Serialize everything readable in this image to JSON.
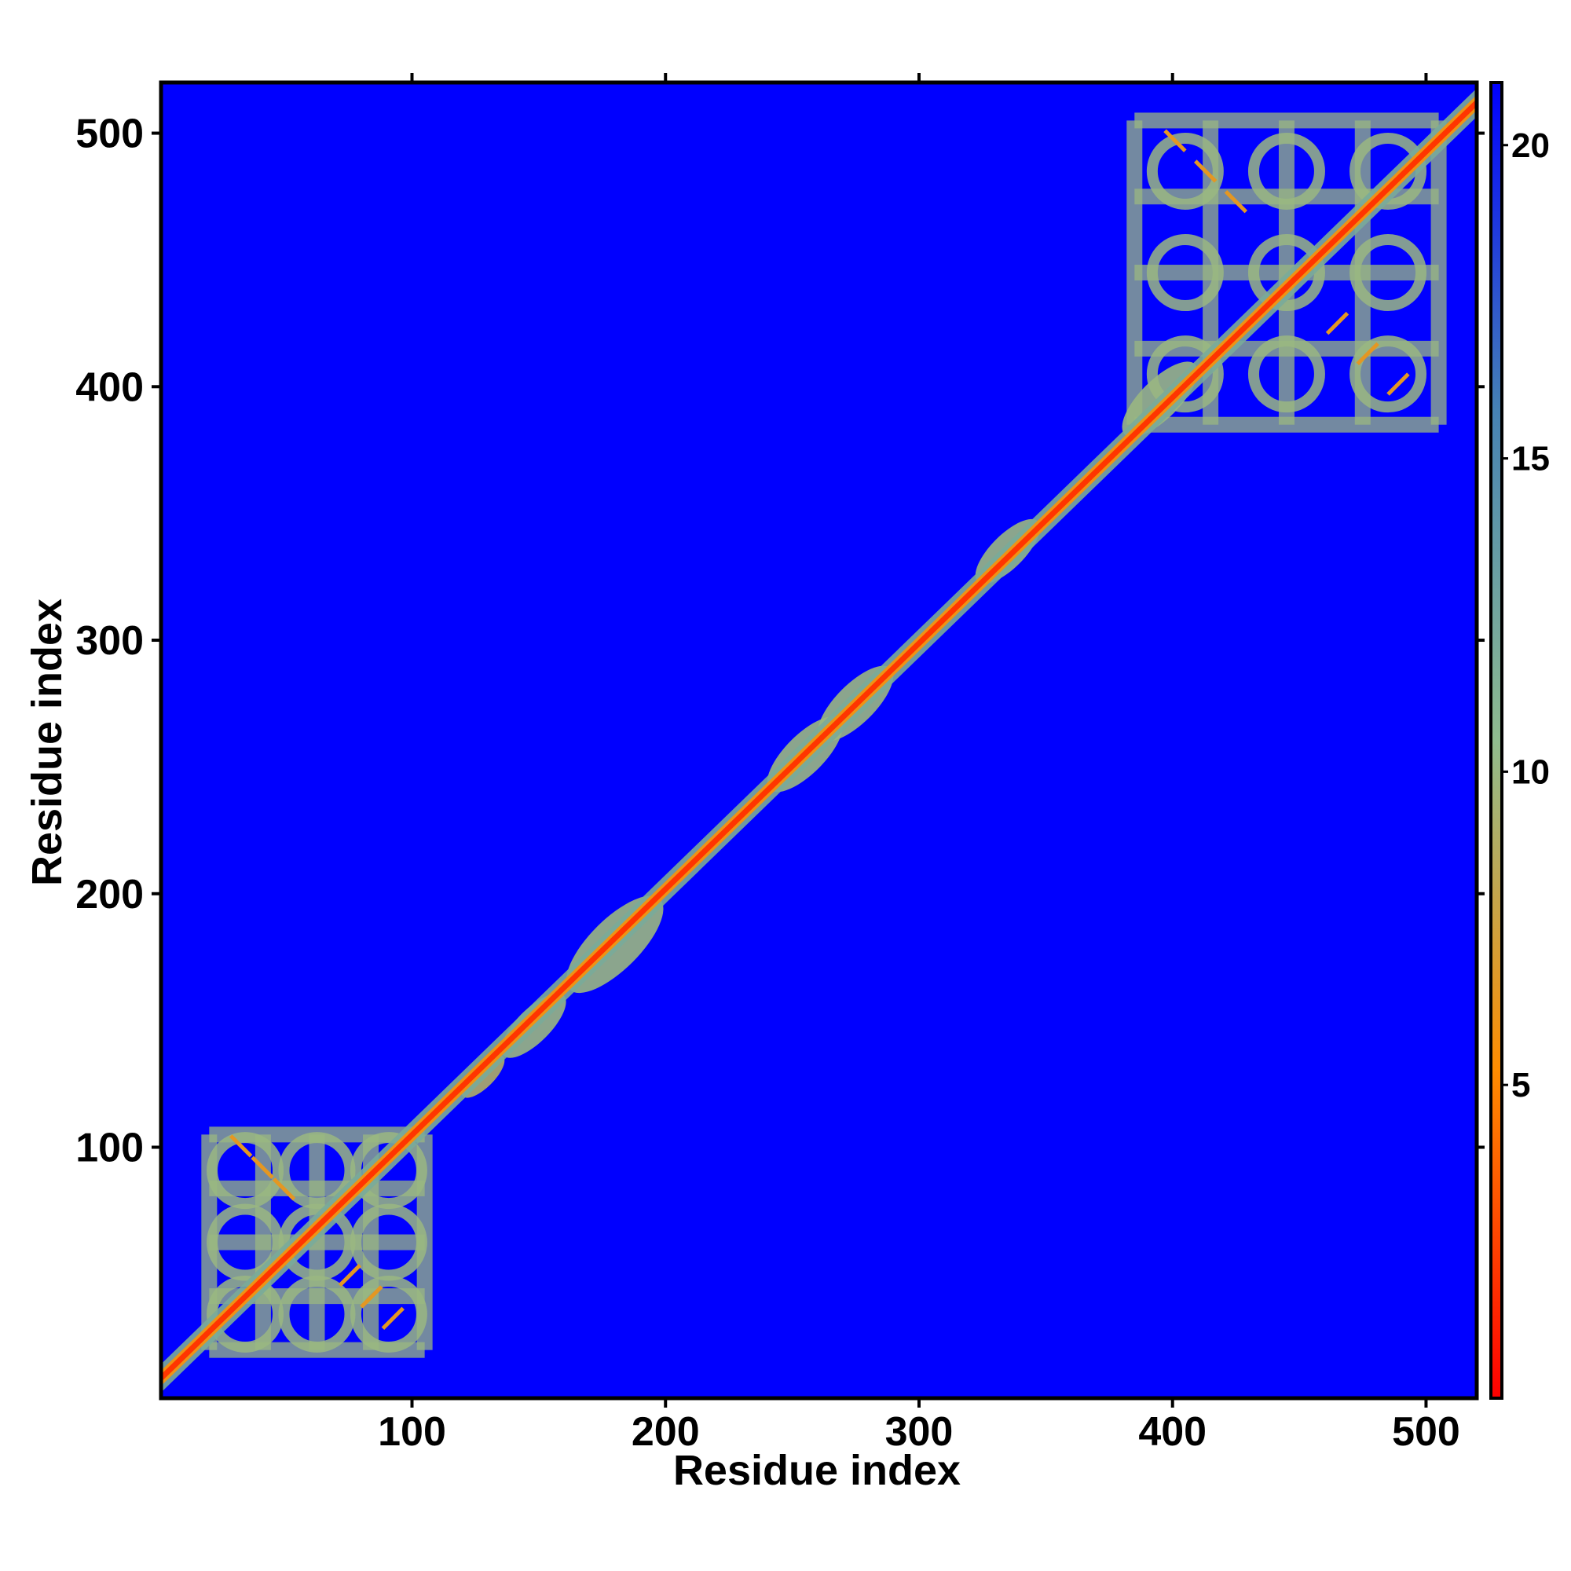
{
  "chart_data": {
    "type": "heatmap",
    "title": "",
    "xlabel": "Residue index",
    "ylabel": "Residue index",
    "xlim": [
      1,
      520
    ],
    "ylim": [
      1,
      520
    ],
    "x_ticks": [
      100,
      200,
      300,
      400,
      500
    ],
    "y_ticks": [
      100,
      200,
      300,
      400,
      500
    ],
    "x_tick_labels": [
      "100",
      "200",
      "300",
      "400",
      "500"
    ],
    "y_tick_labels": [
      "100",
      "200",
      "300",
      "400",
      "500"
    ],
    "colorbar": {
      "range": [
        0,
        21
      ],
      "ticks": [
        5,
        10,
        15,
        20
      ],
      "tick_labels": [
        "5",
        "10",
        "15",
        "20"
      ],
      "colors": [
        "#ff0000",
        "#ff8c00",
        "#8fbc8f",
        "#4682b4",
        "#0000ff"
      ]
    },
    "background_value": 21,
    "diagonal": {
      "from": 1,
      "to": 520,
      "value": 2
    },
    "domains": [
      {
        "start": 20,
        "end": 105,
        "value": 10
      },
      {
        "start": 385,
        "end": 505,
        "value": 10
      }
    ],
    "local_blobs": [
      {
        "center": 128,
        "width": 8,
        "value": 9
      },
      {
        "center": 148,
        "width": 12,
        "value": 10
      },
      {
        "center": 180,
        "width": 18,
        "value": 10
      },
      {
        "center": 255,
        "width": 14,
        "value": 10
      },
      {
        "center": 275,
        "width": 14,
        "value": 10
      },
      {
        "center": 335,
        "width": 12,
        "value": 10
      },
      {
        "center": 395,
        "width": 14,
        "value": 10
      }
    ],
    "grid": false,
    "legend": "colorbar-right"
  }
}
